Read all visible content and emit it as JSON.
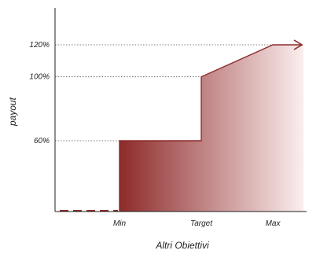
{
  "chart_data": {
    "type": "area",
    "title": "",
    "xlabel": "Altri Obiettivi",
    "ylabel": "payout",
    "x_ticks": [
      "Min",
      "Target",
      "Max"
    ],
    "y_ticks": [
      "60%",
      "100%",
      "120%"
    ],
    "points": [
      {
        "x": "Min",
        "y": 60
      },
      {
        "x": "Target",
        "y": 60
      },
      {
        "x": "Target",
        "y": 100
      },
      {
        "x": "Max",
        "y": 120
      }
    ],
    "below_min_payout": 0,
    "beyond_max": "capped at 120% (arrow)",
    "ylim": [
      0,
      130
    ],
    "grid": "dotted reference lines at 60%, 100%, 120%",
    "colors": {
      "fill_dark": "#8e2a2a",
      "fill_light": "#fbeeee",
      "line": "#8e2a2a",
      "axis": "#222222"
    }
  }
}
